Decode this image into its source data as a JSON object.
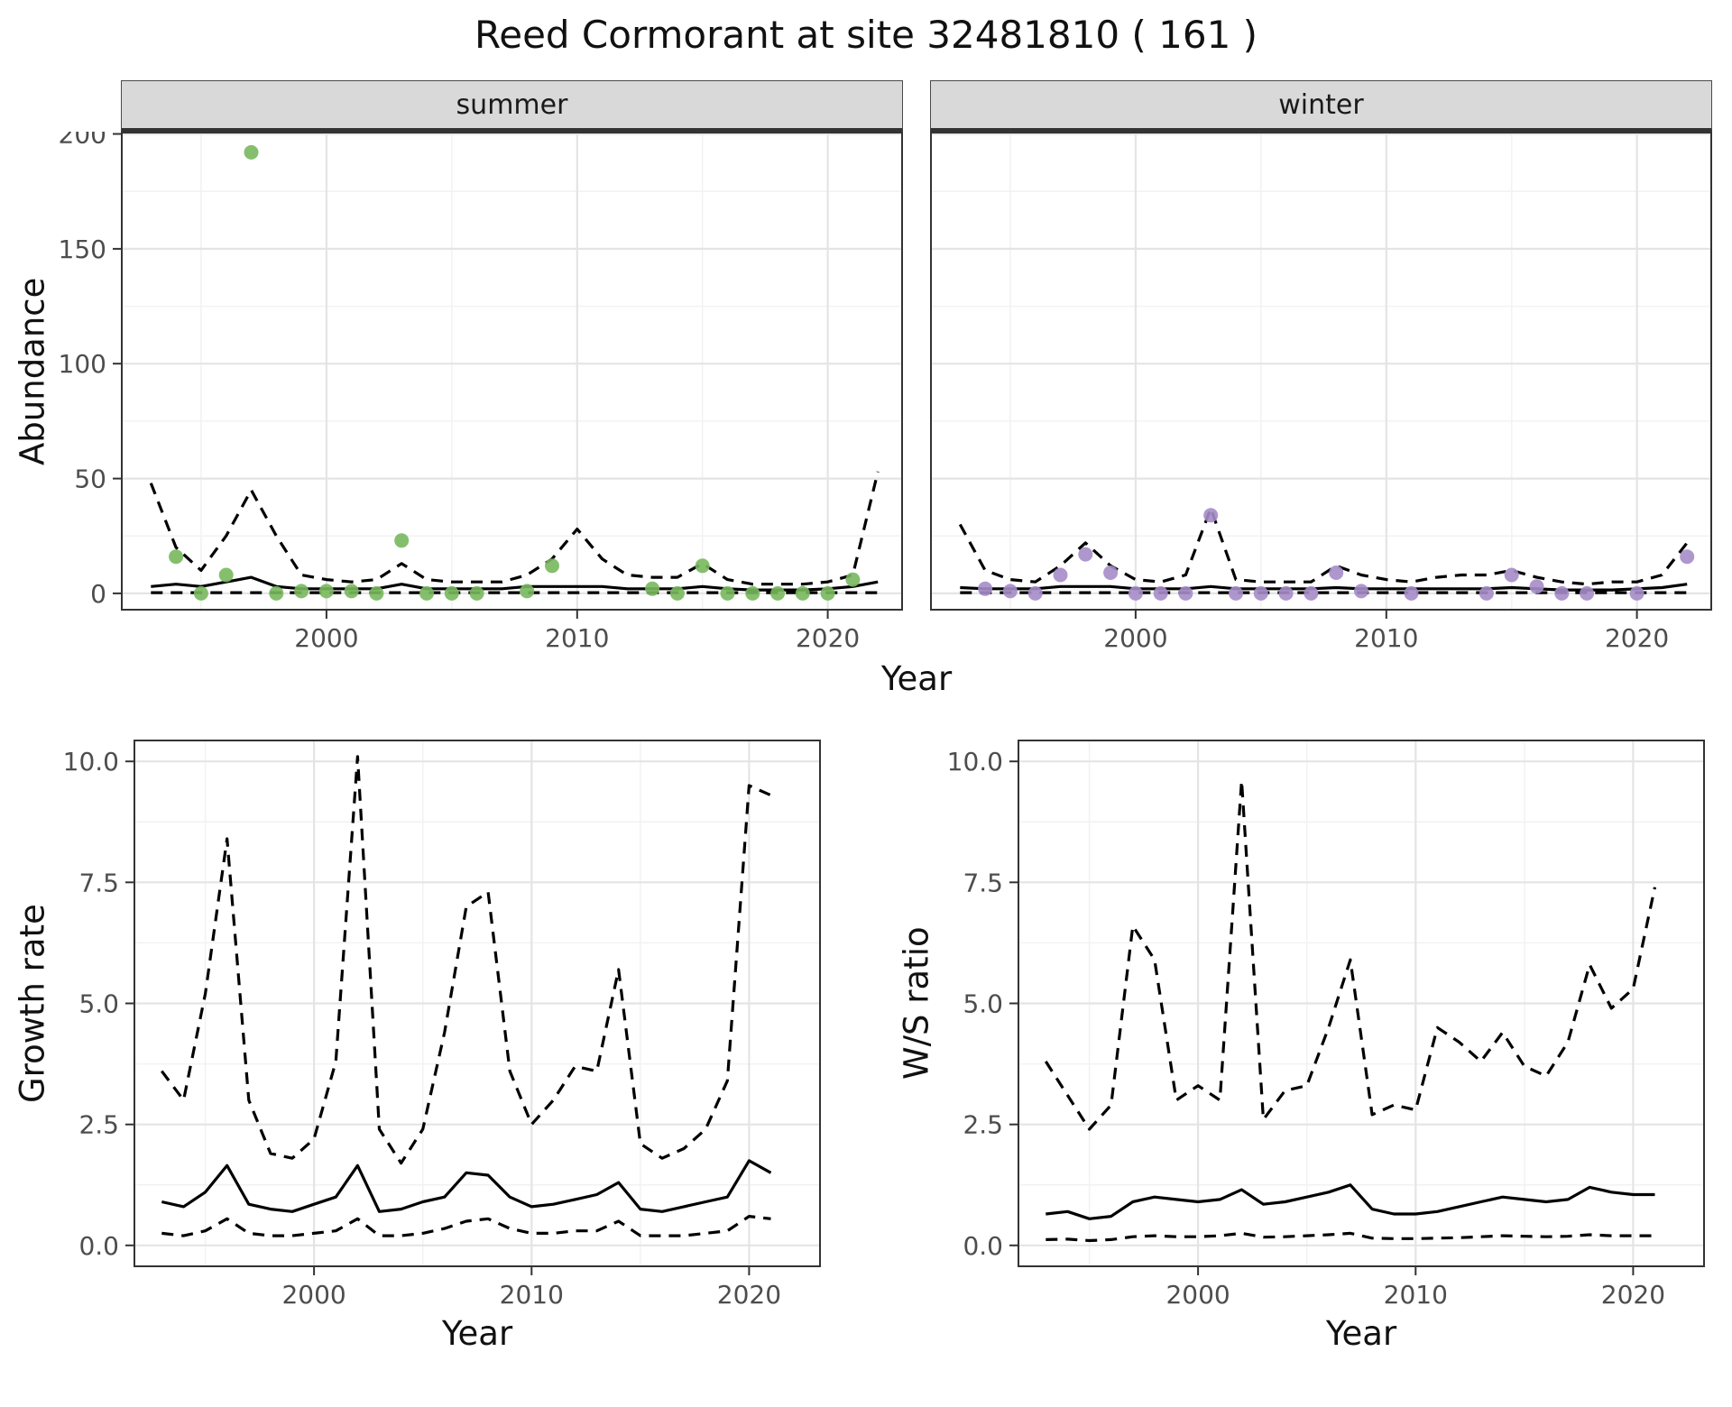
{
  "title": "Reed Cormorant at site 32481810 ( 161 )",
  "styles": {
    "summer_point": "#78b85e",
    "winter_point": "#a58cc8",
    "strip_bg": "#d9d9d9",
    "line_color": "#000000",
    "grid_major": "#e4e4e4",
    "grid_minor": "#f2f2f2",
    "border_color": "#333333",
    "tick_label_color": "#4d4d4d"
  },
  "chart_data": [
    {
      "id": "abundance",
      "type": "scatter",
      "title": "Abundance by season (facets: summer, winter)",
      "xlabel": "Year",
      "ylabel": "Abundance",
      "xlim": [
        1991.8,
        2023.0
      ],
      "ylim": [
        -7.5,
        201
      ],
      "xticks": [
        2000,
        2010,
        2020
      ],
      "xtick_labels": [
        "2000",
        "2010",
        "2020"
      ],
      "yticks": [
        0,
        50,
        100,
        150,
        200
      ],
      "ytick_labels": [
        "0",
        "50",
        "100",
        "150",
        "200"
      ],
      "grid": true,
      "legend": "none",
      "line_years": [
        1993,
        1994,
        1995,
        1996,
        1997,
        1998,
        1999,
        2000,
        2001,
        2002,
        2003,
        2004,
        2005,
        2006,
        2007,
        2008,
        2009,
        2010,
        2011,
        2012,
        2013,
        2014,
        2015,
        2016,
        2017,
        2018,
        2019,
        2020,
        2021,
        2022
      ],
      "facets": [
        {
          "label": "summer",
          "point_color": "#78b85e",
          "points_x": [
            1994,
            1995,
            1996,
            1997,
            1998,
            1999,
            2000,
            2001,
            2002,
            2003,
            2004,
            2005,
            2006,
            2008,
            2009,
            2013,
            2014,
            2015,
            2016,
            2017,
            2018,
            2019,
            2020,
            2021
          ],
          "points_y": [
            16,
            0,
            8,
            192,
            0,
            1,
            1,
            1,
            0,
            23,
            0,
            0,
            0,
            1,
            12,
            2,
            0,
            12,
            0,
            0,
            0,
            0,
            0,
            6
          ],
          "fit": [
            3,
            4,
            3,
            5,
            7,
            3,
            2,
            2,
            2,
            2,
            4,
            2,
            2,
            2,
            2,
            3,
            3,
            3,
            3,
            2,
            2,
            2,
            3,
            2,
            1.5,
            1.5,
            1.5,
            2,
            3,
            5
          ],
          "upper": [
            48,
            20,
            10,
            25,
            45,
            25,
            8,
            6,
            5,
            6,
            13,
            6,
            5,
            5,
            5,
            8,
            15,
            28,
            15,
            8,
            7,
            7,
            13,
            6,
            4,
            4,
            4,
            5,
            8,
            53
          ],
          "lower": [
            0.3,
            0.3,
            0.3,
            0.3,
            0.3,
            0.3,
            0.3,
            0.3,
            0.3,
            0.3,
            0.3,
            0.3,
            0.3,
            0.3,
            0.3,
            0.3,
            0.3,
            0.3,
            0.3,
            0.3,
            0.3,
            0.3,
            0.3,
            0.3,
            0.3,
            0.3,
            0.3,
            0.3,
            0.3,
            0.3
          ]
        },
        {
          "label": "winter",
          "point_color": "#a58cc8",
          "points_x": [
            1994,
            1995,
            1996,
            1997,
            1998,
            1999,
            2000,
            2001,
            2002,
            2003,
            2004,
            2005,
            2006,
            2007,
            2008,
            2009,
            2011,
            2014,
            2015,
            2016,
            2017,
            2018,
            2020,
            2022
          ],
          "points_y": [
            2,
            1,
            0,
            8,
            17,
            9,
            0,
            0,
            0,
            34,
            0,
            0,
            0,
            0,
            9,
            1,
            0,
            0,
            8,
            3,
            0,
            0,
            0,
            16
          ],
          "fit": [
            2.5,
            2,
            2,
            2,
            3,
            3,
            3,
            2,
            2,
            2,
            3,
            2,
            2,
            2,
            2,
            2.5,
            2,
            2,
            2,
            2,
            2,
            2,
            2.5,
            2,
            1.5,
            1.5,
            1.5,
            2,
            2.5,
            4
          ],
          "upper": [
            30,
            10,
            6,
            5,
            12,
            22,
            12,
            6,
            5,
            8,
            37,
            6,
            5,
            5,
            5,
            12,
            8,
            6,
            5,
            7,
            8,
            8,
            10,
            7,
            5,
            4,
            5,
            5,
            8,
            22
          ],
          "lower": [
            0.3,
            0.3,
            0.3,
            0.3,
            0.3,
            0.3,
            0.3,
            0.3,
            0.3,
            0.3,
            0.3,
            0.3,
            0.3,
            0.3,
            0.3,
            0.3,
            0.3,
            0.3,
            0.3,
            0.3,
            0.3,
            0.3,
            0.3,
            0.3,
            0.3,
            0.3,
            0.3,
            0.3,
            0.3,
            0.3
          ]
        }
      ]
    },
    {
      "id": "growth",
      "type": "line",
      "title": "Growth rate",
      "xlabel": "Year",
      "ylabel": "Growth rate",
      "xlim": [
        1991.7,
        2023.3
      ],
      "ylim": [
        -0.45,
        10.45
      ],
      "xticks": [
        2000,
        2010,
        2020
      ],
      "xtick_labels": [
        "2000",
        "2010",
        "2020"
      ],
      "yticks": [
        0,
        2.5,
        5,
        7.5,
        10
      ],
      "ytick_labels": [
        "0.0",
        "2.5",
        "5.0",
        "7.5",
        "10.0"
      ],
      "grid": true,
      "years": [
        1993,
        1994,
        1995,
        1996,
        1997,
        1998,
        1999,
        2000,
        2001,
        2002,
        2003,
        2004,
        2005,
        2006,
        2007,
        2008,
        2009,
        2010,
        2011,
        2012,
        2013,
        2014,
        2015,
        2016,
        2017,
        2018,
        2019,
        2020,
        2021
      ],
      "fit": [
        0.9,
        0.8,
        1.1,
        1.65,
        0.85,
        0.75,
        0.7,
        0.85,
        1.0,
        1.65,
        0.7,
        0.75,
        0.9,
        1.0,
        1.5,
        1.45,
        1.0,
        0.8,
        0.85,
        0.95,
        1.05,
        1.3,
        0.75,
        0.7,
        0.8,
        0.9,
        1.0,
        1.75,
        1.5
      ],
      "upper": [
        3.6,
        3.0,
        5.2,
        8.4,
        3.0,
        1.9,
        1.8,
        2.2,
        3.8,
        10.1,
        2.4,
        1.7,
        2.4,
        4.4,
        7.0,
        7.3,
        3.6,
        2.5,
        3.0,
        3.7,
        3.6,
        5.7,
        2.1,
        1.8,
        2.0,
        2.4,
        3.4,
        9.5,
        9.3
      ],
      "lower": [
        0.25,
        0.2,
        0.3,
        0.55,
        0.25,
        0.2,
        0.2,
        0.25,
        0.3,
        0.55,
        0.2,
        0.2,
        0.25,
        0.35,
        0.5,
        0.55,
        0.35,
        0.25,
        0.25,
        0.3,
        0.3,
        0.5,
        0.2,
        0.2,
        0.2,
        0.25,
        0.3,
        0.6,
        0.55
      ]
    },
    {
      "id": "ws_ratio",
      "type": "line",
      "title": "W/S ratio",
      "xlabel": "Year",
      "ylabel": "W/S ratio",
      "xlim": [
        1991.7,
        2023.3
      ],
      "ylim": [
        -0.45,
        10.45
      ],
      "xticks": [
        2000,
        2010,
        2020
      ],
      "xtick_labels": [
        "2000",
        "2010",
        "2020"
      ],
      "yticks": [
        0,
        2.5,
        5,
        7.5,
        10
      ],
      "ytick_labels": [
        "0.0",
        "2.5",
        "5.0",
        "7.5",
        "10.0"
      ],
      "grid": true,
      "years": [
        1993,
        1994,
        1995,
        1996,
        1997,
        1998,
        1999,
        2000,
        2001,
        2002,
        2003,
        2004,
        2005,
        2006,
        2007,
        2008,
        2009,
        2010,
        2011,
        2012,
        2013,
        2014,
        2015,
        2016,
        2017,
        2018,
        2019,
        2020,
        2021
      ],
      "fit": [
        0.65,
        0.7,
        0.55,
        0.6,
        0.9,
        1.0,
        0.95,
        0.9,
        0.95,
        1.15,
        0.85,
        0.9,
        1.0,
        1.1,
        1.25,
        0.75,
        0.65,
        0.65,
        0.7,
        0.8,
        0.9,
        1.0,
        0.95,
        0.9,
        0.95,
        1.2,
        1.1,
        1.05,
        1.05
      ],
      "upper": [
        3.8,
        3.1,
        2.4,
        2.9,
        6.6,
        5.9,
        3.0,
        3.3,
        3.0,
        9.6,
        2.6,
        3.2,
        3.3,
        4.5,
        5.9,
        2.7,
        2.9,
        2.8,
        4.5,
        4.2,
        3.8,
        4.4,
        3.7,
        3.5,
        4.2,
        5.8,
        4.9,
        5.3,
        7.4
      ],
      "lower": [
        0.12,
        0.13,
        0.1,
        0.12,
        0.18,
        0.2,
        0.18,
        0.18,
        0.2,
        0.25,
        0.17,
        0.18,
        0.2,
        0.22,
        0.25,
        0.15,
        0.14,
        0.14,
        0.15,
        0.16,
        0.18,
        0.2,
        0.19,
        0.18,
        0.19,
        0.22,
        0.2,
        0.2,
        0.2
      ]
    }
  ]
}
